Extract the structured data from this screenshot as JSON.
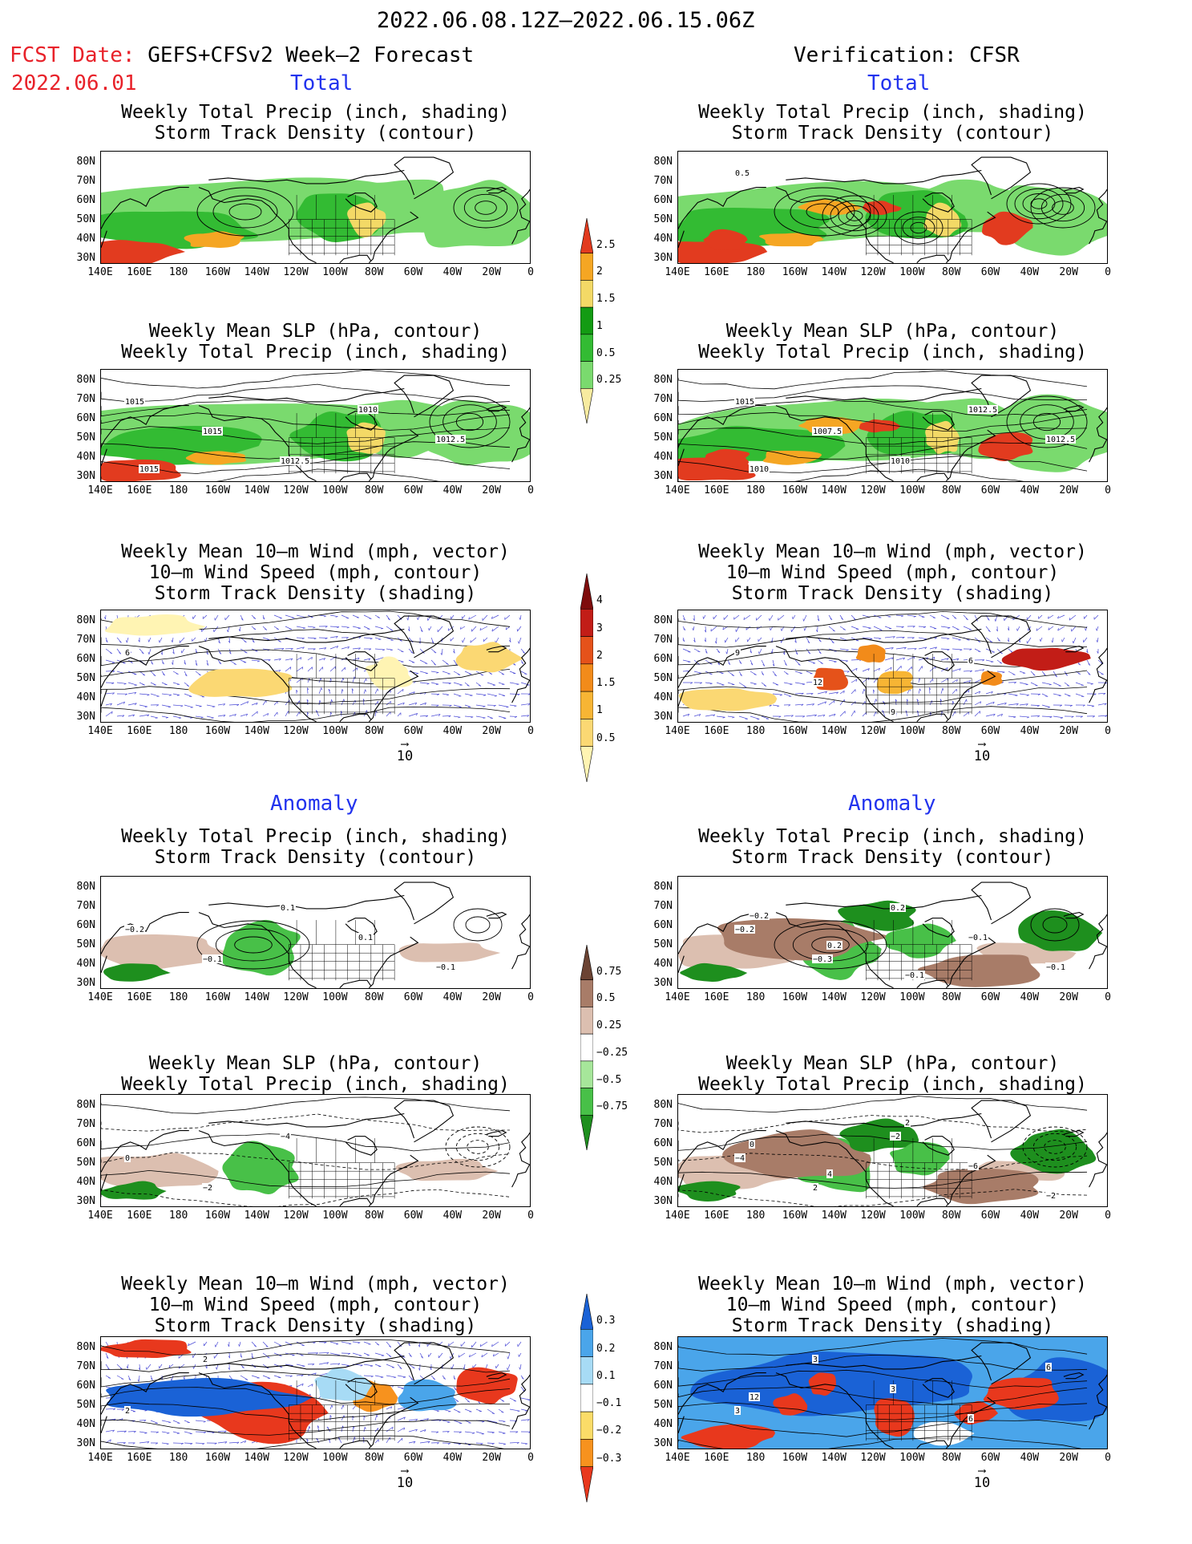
{
  "header": {
    "date_range": "2022.06.08.12Z—2022.06.15.06Z",
    "fcst_label": "FCST Date:",
    "fcst_model": " GEFS+CFSv2 Week—2 Forecast",
    "fcst_date": "2022.06.01",
    "verification": "Verification: CFSR"
  },
  "sections": {
    "total": "Total",
    "anomaly": "Anomaly"
  },
  "titles": {
    "precip_storm": [
      "Weekly Total Precip (inch, shading)",
      "Storm Track Density (contour)"
    ],
    "slp_precip": [
      "Weekly Mean SLP (hPa, contour)",
      "Weekly Total Precip (inch, shading)"
    ],
    "wind_storm": [
      "Weekly Mean 10—m Wind (mph, vector)",
      "10—m Wind Speed (mph, contour)",
      "Storm Track Density (shading)"
    ]
  },
  "axes": {
    "lat_labels": [
      "80N",
      "70N",
      "60N",
      "50N",
      "40N",
      "30N"
    ],
    "lon_labels": [
      "140E",
      "160E",
      "180",
      "160W",
      "140W",
      "120W",
      "100W",
      "80W",
      "60W",
      "40W",
      "20W",
      "0"
    ]
  },
  "vector_ref": "10",
  "colorbars": {
    "precip_total": {
      "labels": [
        "2.5",
        "2",
        "1.5",
        "1",
        "0.5",
        "0.25"
      ],
      "colors": [
        "#f7eba0",
        "#7ada6e",
        "#33bb33",
        "#139b13",
        "#f3d966",
        "#f5a623",
        "#e23b1f"
      ]
    },
    "storm_total": {
      "labels": [
        "4",
        "3",
        "2",
        "1.5",
        "1",
        "0.5"
      ],
      "colors": [
        "#fff4b3",
        "#fbd873",
        "#f7b534",
        "#f28b1a",
        "#e5521a",
        "#c21d17",
        "#7e0c0c"
      ]
    },
    "precip_anom": {
      "labels": [
        "0.75",
        "0.5",
        "0.25",
        "−0.25",
        "−0.5",
        "−0.75"
      ],
      "colors": [
        "#1e8f1e",
        "#48c048",
        "#a6e69a",
        "#ffffff",
        "#dcbfb0",
        "#a87c68",
        "#6b4333"
      ]
    },
    "storm_anom": {
      "labels": [
        "0.3",
        "0.2",
        "0.1",
        "−0.1",
        "−0.2",
        "−0.3"
      ],
      "colors": [
        "#e8381d",
        "#f7921e",
        "#fbdc68",
        "#ffffff",
        "#a7dbf5",
        "#4aa5ea",
        "#1a62d6"
      ]
    }
  },
  "contour_labels": {
    "total_slp_fcst": [
      "1015",
      "1015",
      "1012.5",
      "1010",
      "1012.5",
      "1015"
    ],
    "total_slp_verif": [
      "1015",
      "1007.5",
      "1010",
      "1012.5",
      "1012.5",
      "1010"
    ],
    "total_storm_verif": [
      "0.5"
    ],
    "total_wind_fcst": [
      "6"
    ],
    "total_wind_verif": [
      "9",
      "12",
      "9",
      "6"
    ],
    "anom_precip_fcst": [
      "−0.2",
      "−0.1",
      "0.1",
      "0.1",
      "−0.1"
    ],
    "anom_precip_verif": [
      "−0.2",
      "−0.3",
      "0.2",
      "−0.1",
      "−0.1",
      "−0.2",
      "0.2",
      "−0.1"
    ],
    "anom_slp_fcst": [
      "0",
      "−2",
      "−4"
    ],
    "anom_slp_verif": [
      "−4",
      "2",
      "−2",
      "−6",
      "−2",
      "0",
      "4",
      "2"
    ],
    "anom_wind_fcst": [
      "2",
      "2"
    ],
    "anom_wind_verif": [
      "3",
      "3",
      "3",
      "6",
      "6",
      "12"
    ]
  }
}
